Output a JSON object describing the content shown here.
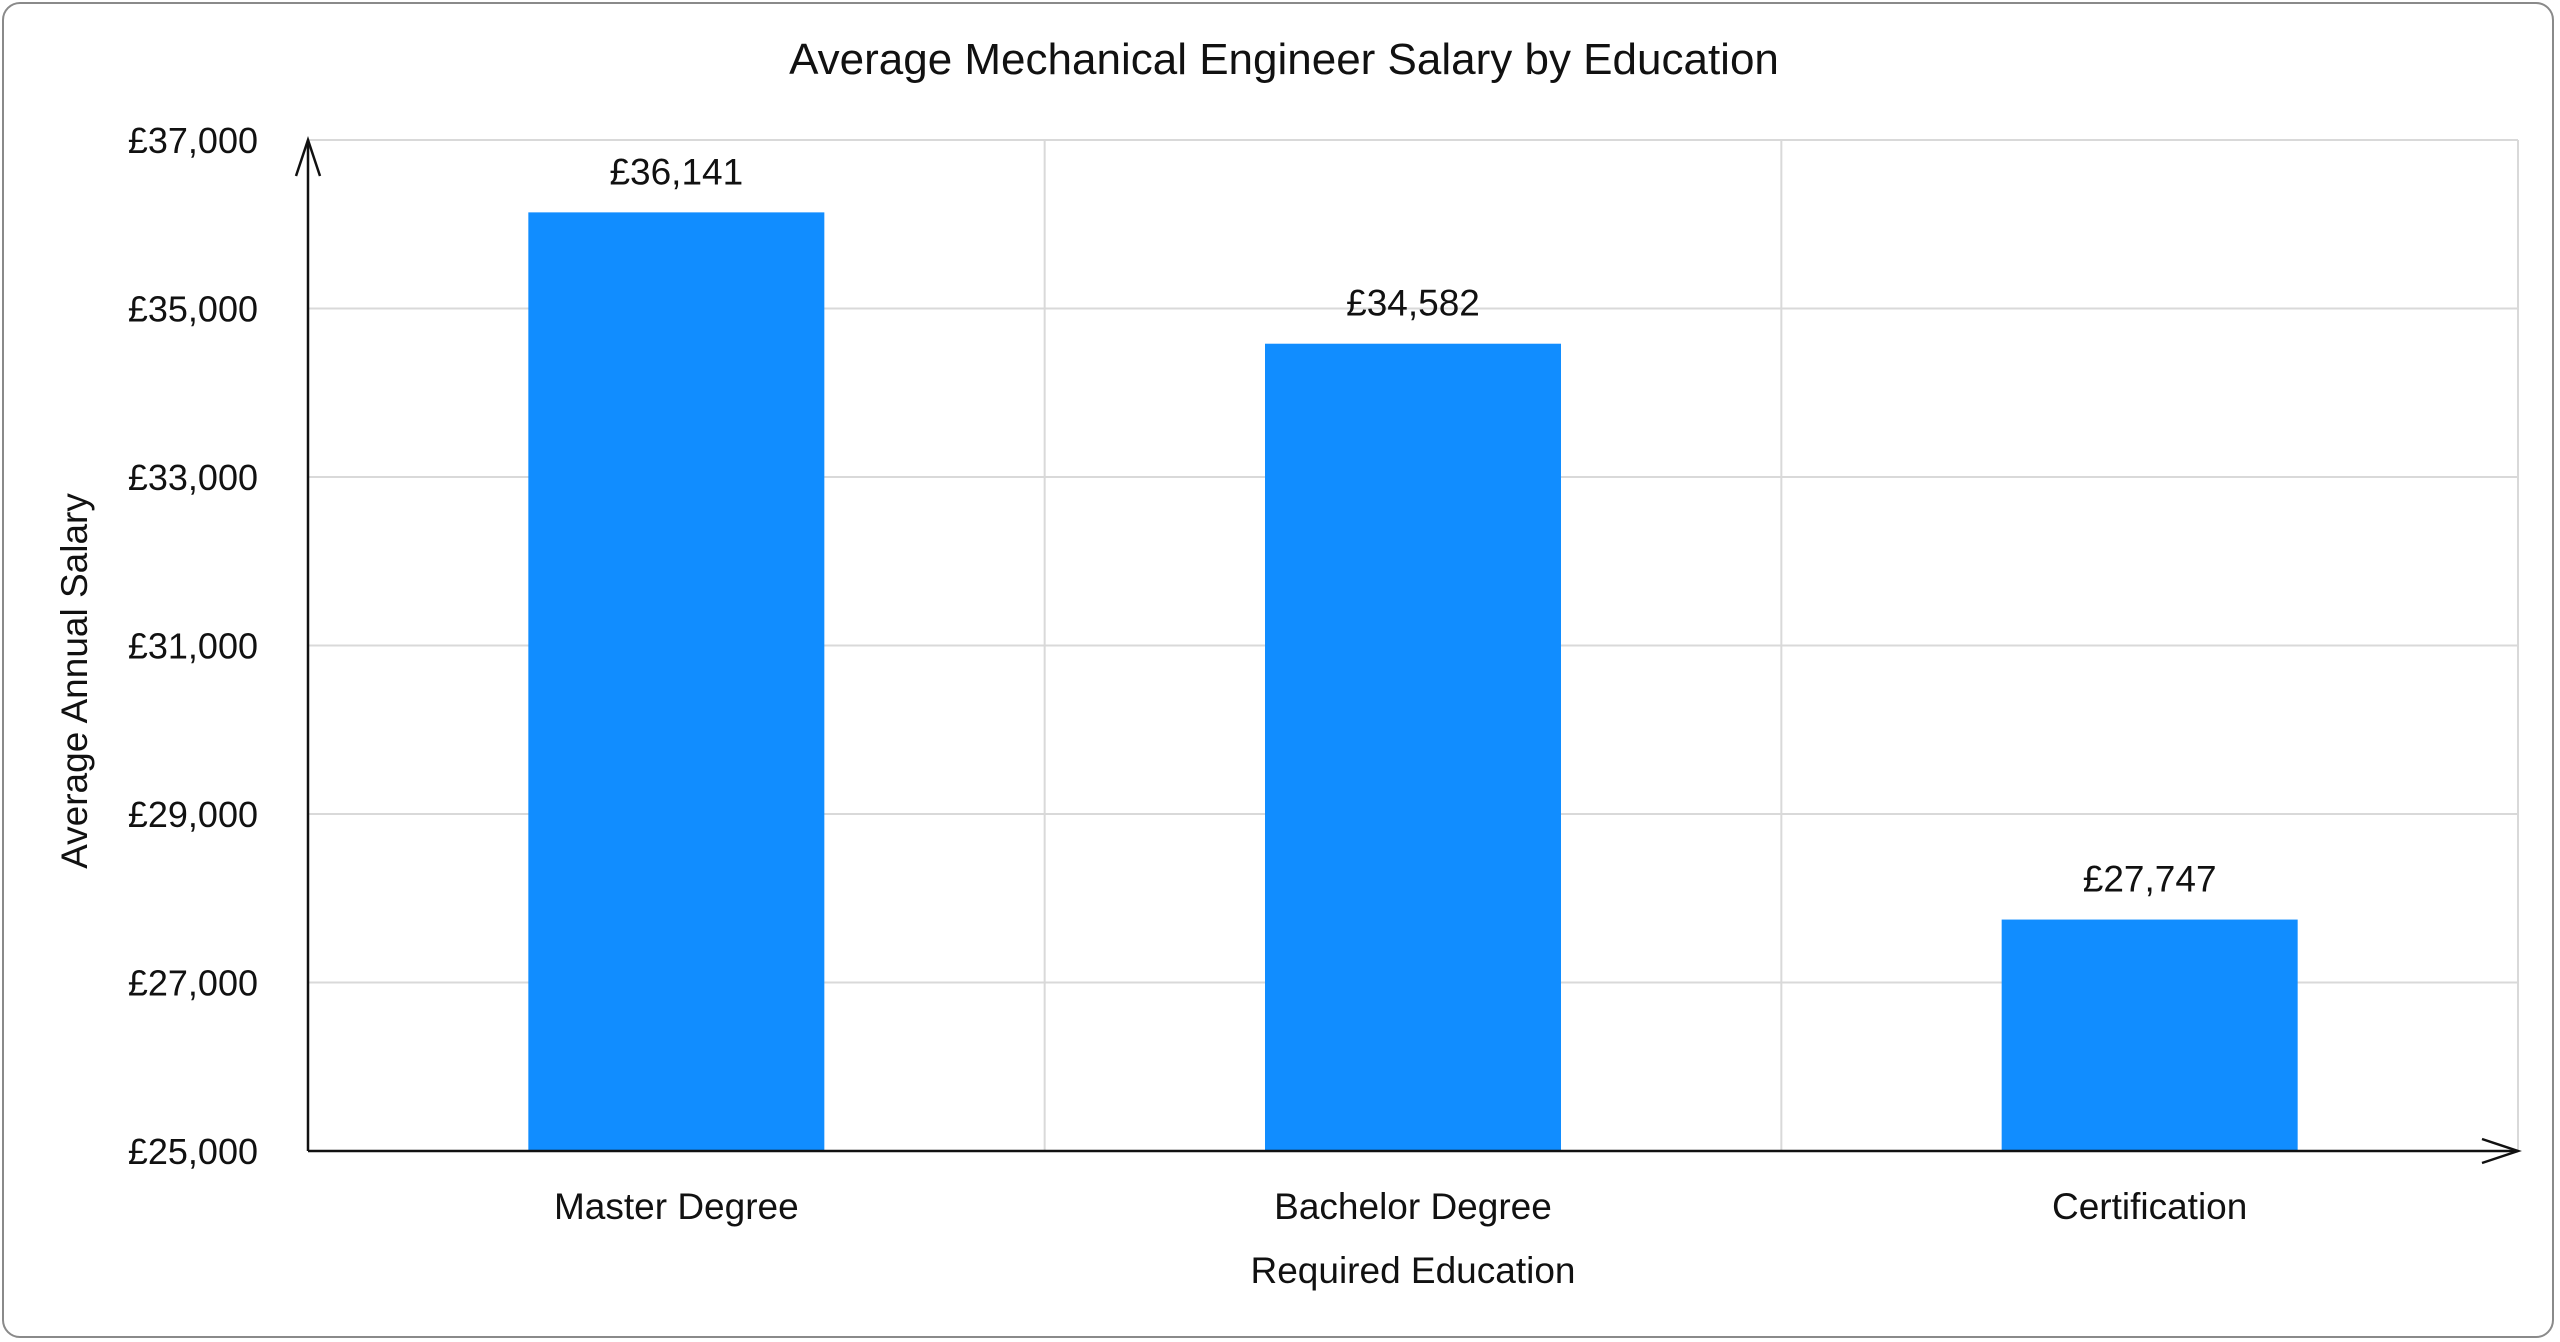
{
  "chart_data": {
    "type": "bar",
    "title": "Average Mechanical Engineer Salary by Education",
    "xlabel": "Required Education",
    "ylabel": "Average Annual Salary",
    "categories": [
      "Master Degree",
      "Bachelor Degree",
      "Certification"
    ],
    "values": [
      36141,
      34582,
      27747
    ],
    "value_labels": [
      "£36,141",
      "£34,582",
      "£27,747"
    ],
    "ylim": [
      25000,
      37000
    ],
    "yticks": [
      25000,
      27000,
      29000,
      31000,
      33000,
      35000,
      37000
    ],
    "ytick_labels": [
      "£25,000",
      "£27,000",
      "£29,000",
      "£31,000",
      "£33,000",
      "£35,000",
      "£37,000"
    ],
    "bar_color": "#118DFF",
    "grid": true,
    "legend": "none"
  }
}
